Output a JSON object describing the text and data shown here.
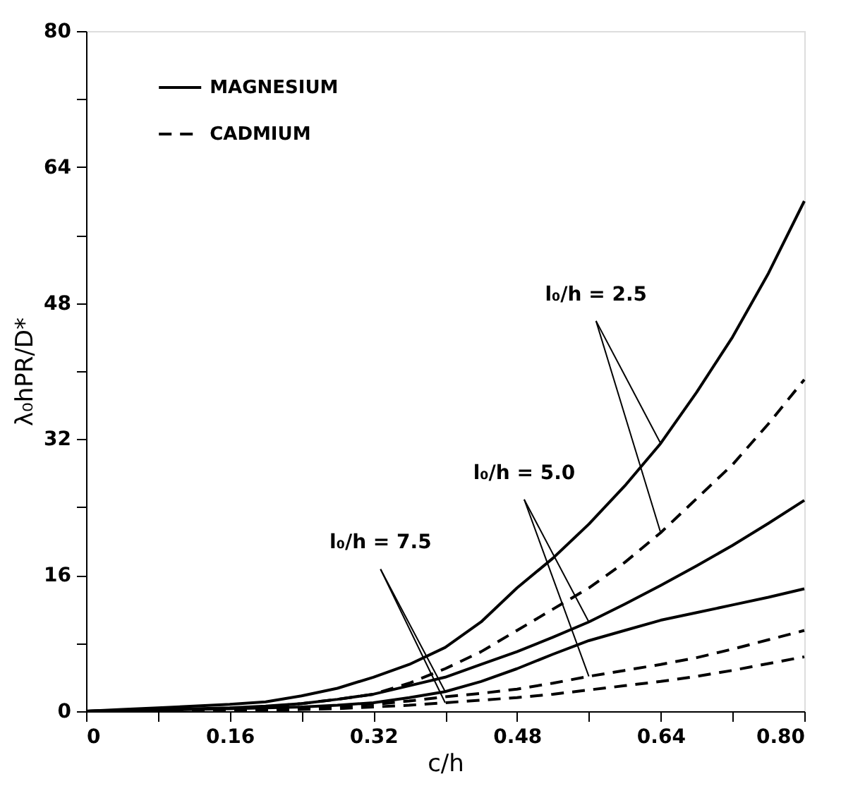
{
  "chart_data": {
    "type": "line",
    "xlabel": "c/h",
    "ylabel": "λ₀hPR/D*",
    "x": [
      0,
      0.04,
      0.08,
      0.12,
      0.16,
      0.2,
      0.24,
      0.28,
      0.32,
      0.36,
      0.4,
      0.44,
      0.48,
      0.52,
      0.56,
      0.6,
      0.64,
      0.68,
      0.72,
      0.76,
      0.8
    ],
    "series": [
      {
        "name": "MAGNESIUM",
        "color": "#000000",
        "line_style": "solid",
        "values": [
          0,
          0.2,
          0.4,
          0.6,
          0.8,
          1.1,
          1.8,
          2.7,
          4,
          5.5,
          7.5,
          10.5,
          14.5,
          18,
          22,
          26.5,
          31.5,
          37.5,
          44,
          51.5,
          60
        ]
      },
      {
        "color": "#000000",
        "line_style": "solid",
        "values": [
          0,
          0.1,
          0.2,
          0.3,
          0.4,
          0.6,
          0.9,
          1.4,
          2,
          3,
          4,
          5.5,
          7,
          8.7,
          10.5,
          12.6,
          14.8,
          17.1,
          19.5,
          22.1,
          24.8
        ]
      },
      {
        "color": "#000000",
        "line_style": "solid",
        "values": [
          0,
          0.1,
          0.1,
          0.2,
          0.3,
          0.4,
          0.5,
          0.7,
          1,
          1.6,
          2.3,
          3.5,
          5,
          6.7,
          8.3,
          9.5,
          10.7,
          11.6,
          12.5,
          13.4,
          14.4
        ]
      },
      {
        "name": "CADMIUM",
        "color": "#000000",
        "line_style": "dashed",
        "values": [
          0,
          0.1,
          0.1,
          0.2,
          0.3,
          0.5,
          0.9,
          1.4,
          2,
          3.3,
          5,
          7,
          9.5,
          12,
          14.5,
          17.5,
          21,
          25,
          29,
          33.8,
          39
        ]
      },
      {
        "color": "#000000",
        "line_style": "dashed",
        "values": [
          0,
          0,
          0.1,
          0.1,
          0.1,
          0.2,
          0.3,
          0.5,
          0.8,
          1.2,
          1.7,
          2.1,
          2.6,
          3.3,
          4.1,
          4.8,
          5.5,
          6.3,
          7.3,
          8.4,
          9.5
        ]
      },
      {
        "color": "#000000",
        "line_style": "dashed",
        "values": [
          0,
          0,
          0,
          0.1,
          0.1,
          0.1,
          0.2,
          0.3,
          0.5,
          0.7,
          1,
          1.3,
          1.6,
          2,
          2.5,
          3,
          3.5,
          4.1,
          4.8,
          5.6,
          6.4
        ]
      }
    ],
    "annotations": [
      {
        "text": "l₀/h = 2.5",
        "x": 0.64,
        "y": 31.5
      },
      {
        "text": "l₀/h = 5.0",
        "x": 0.56,
        "y": 10.5
      },
      {
        "text": "l₀/h = 7.5",
        "x": 0.4,
        "y": 2.3
      }
    ],
    "xlim": [
      0,
      0.8
    ],
    "xticks": [
      0,
      {
        "value": 0.08,
        "label": null
      },
      {
        "value": 0.16,
        "label": "0.16"
      },
      {
        "value": 0.24,
        "label": null
      },
      {
        "value": 0.32,
        "label": "0.32"
      },
      {
        "value": 0.4,
        "label": null
      },
      {
        "value": 0.48,
        "label": "0.48"
      },
      {
        "value": 0.56,
        "label": null
      },
      {
        "value": 0.64,
        "label": "0.64"
      },
      {
        "value": 0.72,
        "label": null
      },
      {
        "value": 0.8,
        "label": "0.80"
      }
    ],
    "ylim": [
      0,
      80
    ],
    "yticks": [
      0,
      {
        "value": 8,
        "label": null
      },
      16,
      {
        "value": 24,
        "label": null
      },
      32,
      {
        "value": 40,
        "label": null
      },
      48,
      {
        "value": 56,
        "label": null
      },
      64,
      {
        "value": 72,
        "label": null
      },
      80
    ],
    "legend": "top left",
    "grid": false,
    "marker": "none"
  }
}
